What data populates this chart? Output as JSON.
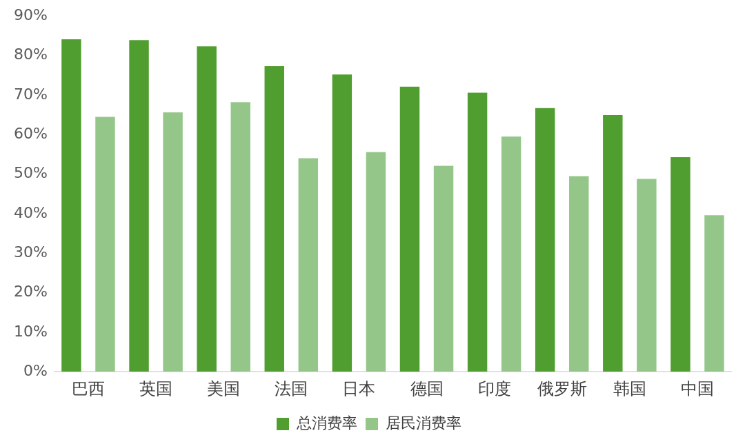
{
  "chart_data": {
    "type": "bar",
    "categories": [
      "巴西",
      "英国",
      "美国",
      "法国",
      "日本",
      "德国",
      "印度",
      "俄罗斯",
      "韩国",
      "中国"
    ],
    "series": [
      {
        "name": "总消费率",
        "color": "#509e2f",
        "values": [
          84.1,
          83.9,
          82.3,
          77.3,
          75.2,
          72.1,
          70.6,
          66.7,
          64.9,
          54.3
        ]
      },
      {
        "name": "居民消费率",
        "color": "#95c689",
        "values": [
          64.5,
          65.6,
          68.2,
          54.0,
          55.6,
          52.1,
          59.5,
          49.5,
          48.8,
          39.6
        ]
      }
    ],
    "ylim": [
      0,
      90
    ],
    "yticks": [
      {
        "value": 0,
        "label": "0%"
      },
      {
        "value": 10,
        "label": "10%"
      },
      {
        "value": 20,
        "label": "20%"
      },
      {
        "value": 30,
        "label": "30%"
      },
      {
        "value": 40,
        "label": "40%"
      },
      {
        "value": 50,
        "label": "50%"
      },
      {
        "value": 60,
        "label": "60%"
      },
      {
        "value": 70,
        "label": "70%"
      },
      {
        "value": 80,
        "label": "80%"
      },
      {
        "value": 90,
        "label": "90%"
      }
    ],
    "grid": false,
    "legend": "bottom"
  }
}
